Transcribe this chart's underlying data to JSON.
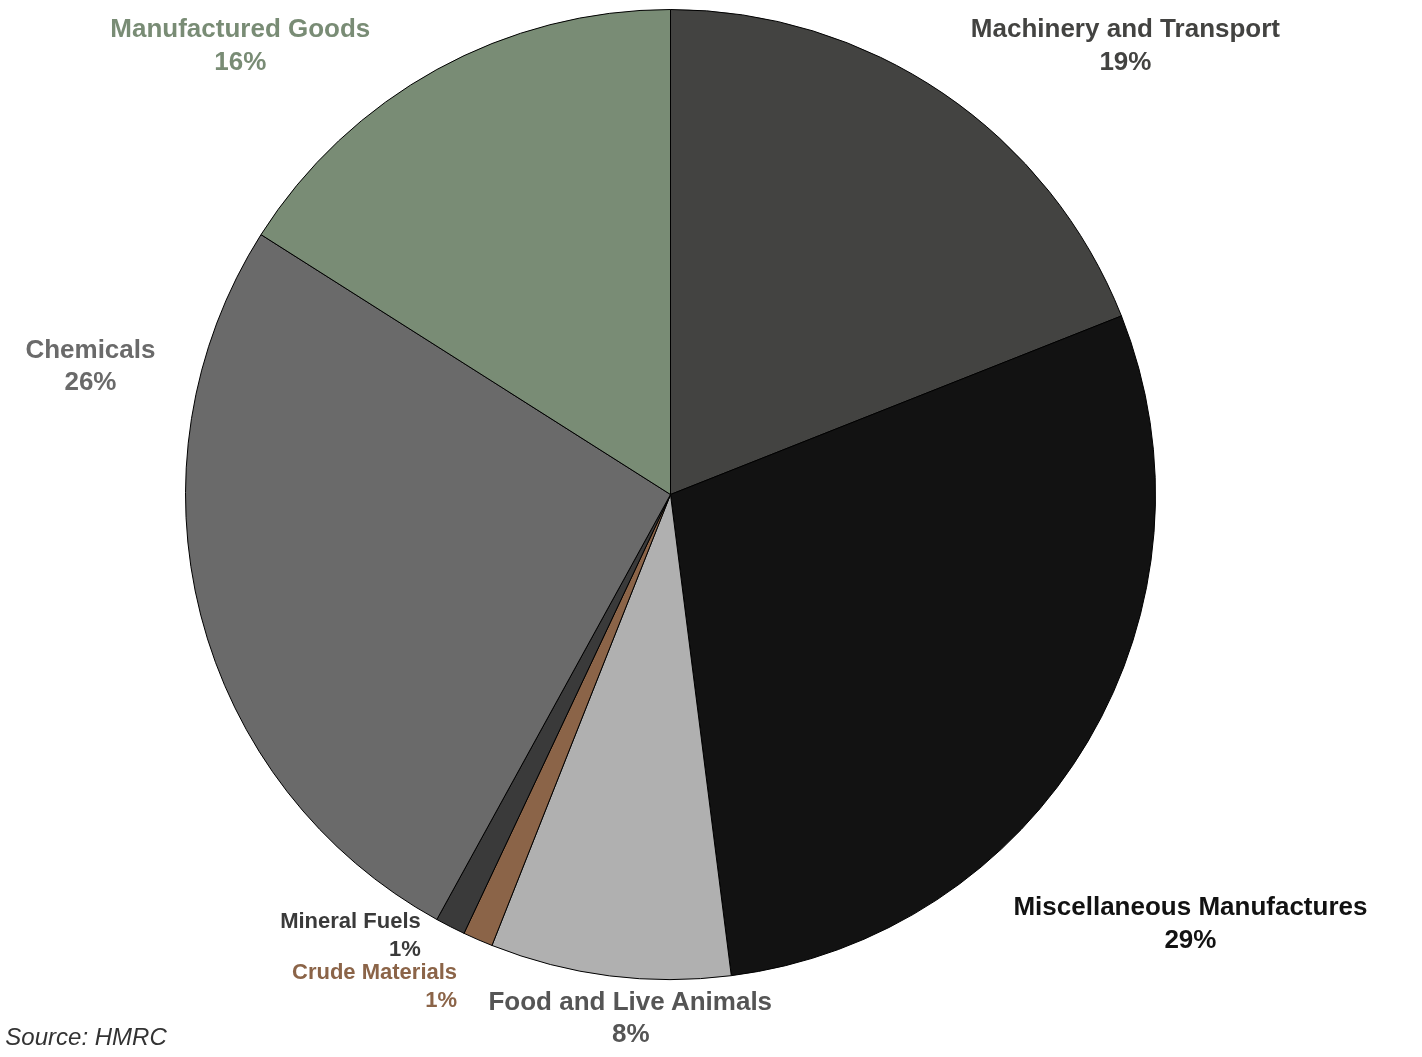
{
  "chart_data": {
    "type": "pie",
    "categories": [
      "Machinery and Transport",
      "Miscellaneous Manufactures",
      "Food and Live Animals",
      "Crude Materials",
      "Mineral Fuels",
      "Chemicals",
      "Manufactured Goods"
    ],
    "values": [
      19,
      29,
      8,
      1,
      1,
      26,
      16
    ],
    "value_labels": [
      "19%",
      "29%",
      "8%",
      "1%",
      "1%",
      "26%",
      "16%"
    ],
    "colors": [
      "#434341",
      "#121212",
      "#b0b0b0",
      "#8b6448",
      "#3a3a3a",
      "#6a6a6a",
      "#798c75"
    ],
    "annotations": [
      "Source: HMRC"
    ]
  }
}
